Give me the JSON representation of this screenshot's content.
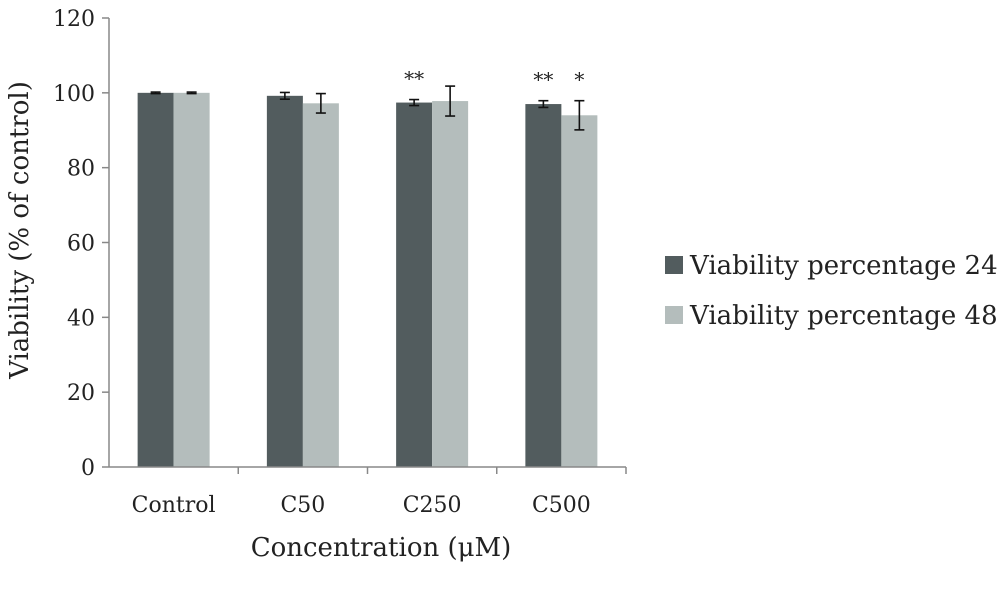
{
  "chart_data": {
    "type": "bar",
    "title": "",
    "xlabel": "Concentration (μM)",
    "ylabel": "Viability (% of control)",
    "ylim": [
      0,
      120
    ],
    "yticks": [
      "0",
      "20",
      "40",
      "60",
      "80",
      "100",
      "120"
    ],
    "categories": [
      "Control",
      "C50",
      "C250",
      "C500"
    ],
    "series": [
      {
        "name": "Viability percentage 24",
        "color": "#525c5e",
        "values": [
          100,
          99.2,
          97.4,
          97.0
        ],
        "errors": [
          0.2,
          0.9,
          0.8,
          0.9
        ],
        "significance": [
          "",
          "",
          "**",
          "**"
        ]
      },
      {
        "name": "Viability percentage 48",
        "color": "#b4bdbc",
        "values": [
          100,
          97.2,
          97.8,
          94.0
        ],
        "errors": [
          0.2,
          2.6,
          4.0,
          3.9
        ],
        "significance": [
          "",
          "",
          "",
          "*"
        ]
      }
    ],
    "legend_position": "right",
    "grid": false
  }
}
